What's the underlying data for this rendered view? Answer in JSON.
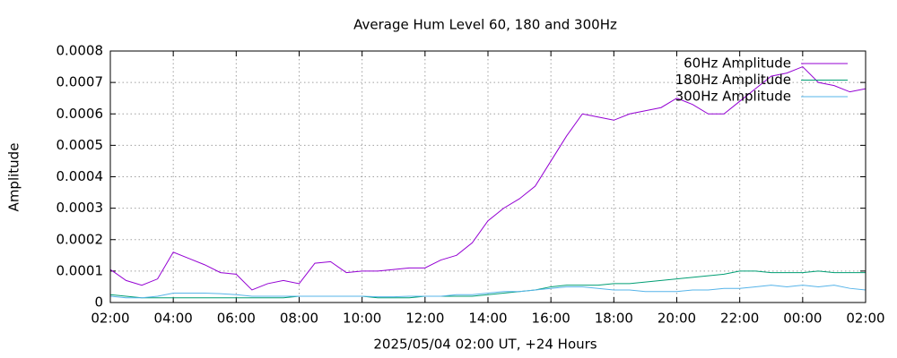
{
  "chart_data": {
    "type": "line",
    "title": "Average Hum Level 60, 180 and 300Hz",
    "xlabel": "2025/05/04 02:00 UT, +24 Hours",
    "ylabel": "Amplitude",
    "x": [
      0,
      0.5,
      1,
      1.5,
      2,
      2.5,
      3,
      3.5,
      4,
      4.5,
      5,
      5.5,
      6,
      6.5,
      7,
      7.5,
      8,
      8.5,
      9,
      9.5,
      10,
      10.5,
      11,
      11.5,
      12,
      12.5,
      13,
      13.5,
      14,
      14.5,
      15,
      15.5,
      16,
      16.5,
      17,
      17.5,
      18,
      18.5,
      19,
      19.5,
      20,
      20.5,
      21,
      21.5,
      22,
      22.5,
      23,
      23.5,
      24
    ],
    "series": [
      {
        "name": "60Hz Amplitude",
        "color": "#9400d3",
        "values": [
          0.000105,
          7e-05,
          5.5e-05,
          7.5e-05,
          0.00016,
          0.00014,
          0.00012,
          9.5e-05,
          9e-05,
          4e-05,
          6e-05,
          7e-05,
          6e-05,
          0.000125,
          0.00013,
          9.5e-05,
          0.0001,
          0.0001,
          0.000105,
          0.00011,
          0.00011,
          0.000135,
          0.00015,
          0.00019,
          0.00026,
          0.0003,
          0.00033,
          0.00037,
          0.00045,
          0.00053,
          0.0006,
          0.00059,
          0.00058,
          0.0006,
          0.00061,
          0.00062,
          0.00065,
          0.00063,
          0.0006,
          0.0006,
          0.00064,
          0.00068,
          0.00072,
          0.00073,
          0.00075,
          0.0007,
          0.00069,
          0.00067,
          0.00068
        ]
      },
      {
        "name": "180Hz Amplitude",
        "color": "#009e73",
        "values": [
          2.5e-05,
          2e-05,
          1.5e-05,
          1.5e-05,
          1.5e-05,
          1.5e-05,
          1.5e-05,
          1.5e-05,
          1.5e-05,
          1.5e-05,
          1.5e-05,
          1.5e-05,
          2e-05,
          2e-05,
          2e-05,
          2e-05,
          2e-05,
          1.5e-05,
          1.5e-05,
          1.5e-05,
          2e-05,
          2e-05,
          2e-05,
          2e-05,
          2.5e-05,
          3e-05,
          3.5e-05,
          4e-05,
          5e-05,
          5.5e-05,
          5.5e-05,
          5.5e-05,
          6e-05,
          6e-05,
          6.5e-05,
          7e-05,
          7.5e-05,
          8e-05,
          8.5e-05,
          9e-05,
          0.0001,
          0.0001,
          9.5e-05,
          9.5e-05,
          9.5e-05,
          0.0001,
          9.5e-05,
          9.5e-05,
          9.5e-05
        ]
      },
      {
        "name": "300Hz Amplitude",
        "color": "#56b4e9",
        "values": [
          2e-05,
          1.5e-05,
          1.5e-05,
          2e-05,
          3e-05,
          3e-05,
          3e-05,
          2.8e-05,
          2.5e-05,
          2e-05,
          2e-05,
          2e-05,
          2e-05,
          2e-05,
          2e-05,
          2e-05,
          2e-05,
          1.8e-05,
          1.8e-05,
          2e-05,
          2e-05,
          2e-05,
          2.5e-05,
          2.5e-05,
          3e-05,
          3.5e-05,
          3.5e-05,
          4e-05,
          4.5e-05,
          5e-05,
          5e-05,
          4.5e-05,
          4e-05,
          4e-05,
          3.5e-05,
          3.5e-05,
          3.5e-05,
          4e-05,
          4e-05,
          4.5e-05,
          4.5e-05,
          5e-05,
          5.5e-05,
          5e-05,
          5.5e-05,
          5e-05,
          5.5e-05,
          4.5e-05,
          4e-05
        ]
      }
    ],
    "xlim": [
      0,
      24
    ],
    "xticks": [
      {
        "value": 0,
        "label": "02:00"
      },
      {
        "value": 2,
        "label": "04:00"
      },
      {
        "value": 4,
        "label": "06:00"
      },
      {
        "value": 6,
        "label": "08:00"
      },
      {
        "value": 8,
        "label": "10:00"
      },
      {
        "value": 10,
        "label": "12:00"
      },
      {
        "value": 12,
        "label": "14:00"
      },
      {
        "value": 14,
        "label": "16:00"
      },
      {
        "value": 16,
        "label": "18:00"
      },
      {
        "value": 18,
        "label": "20:00"
      },
      {
        "value": 20,
        "label": "22:00"
      },
      {
        "value": 22,
        "label": "00:00"
      },
      {
        "value": 24,
        "label": "02:00"
      }
    ],
    "ylim": [
      0,
      0.0008
    ],
    "yticks": [
      0,
      0.0001,
      0.0002,
      0.0003,
      0.0004,
      0.0005,
      0.0006,
      0.0007,
      0.0008
    ],
    "grid": true,
    "legend": "top-right"
  }
}
